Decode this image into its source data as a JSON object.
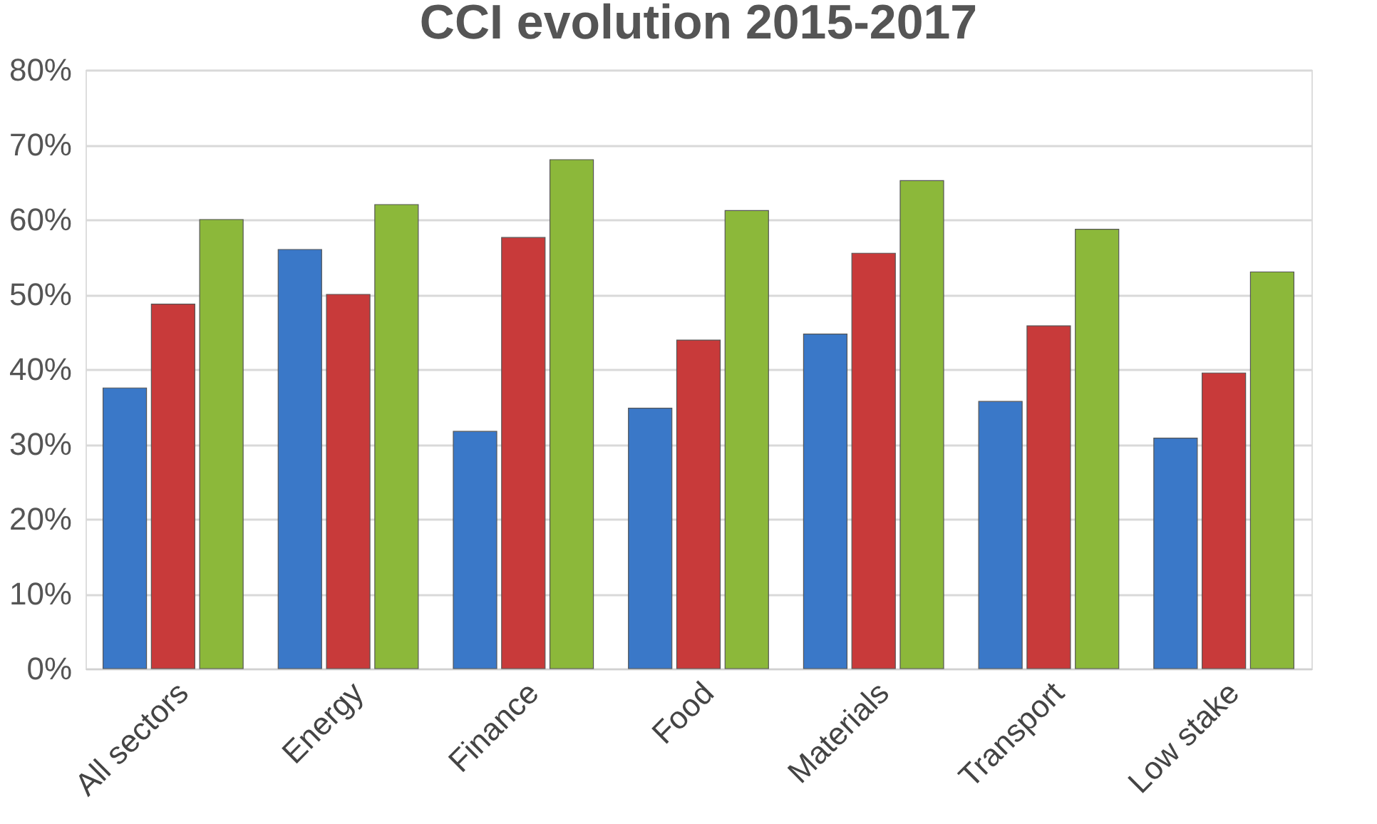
{
  "chart_data": {
    "type": "bar",
    "title": "CCI evolution  2015-2017",
    "categories": [
      "All sectors",
      "Energy",
      "Finance",
      "Food",
      "Materials",
      "Transport",
      "Low stake"
    ],
    "series": [
      {
        "color": "#3a78c8",
        "values": [
          37.5,
          56,
          31.7,
          34.8,
          44.7,
          35.7,
          30.8
        ]
      },
      {
        "color": "#c83a3a",
        "values": [
          48.7,
          50,
          57.6,
          43.9,
          55.5,
          45.8,
          39.5
        ]
      },
      {
        "color": "#8cb83a",
        "values": [
          60,
          62,
          68,
          61.2,
          65.2,
          58.7,
          53
        ]
      }
    ],
    "ylim": [
      0,
      80
    ],
    "yticks": [
      {
        "value": 0,
        "label": "0%"
      },
      {
        "value": 10,
        "label": "10%"
      },
      {
        "value": 20,
        "label": "20%"
      },
      {
        "value": 30,
        "label": "30%"
      },
      {
        "value": 40,
        "label": "40%"
      },
      {
        "value": 50,
        "label": "50%"
      },
      {
        "value": 60,
        "label": "60%"
      },
      {
        "value": 70,
        "label": "70%"
      },
      {
        "value": 80,
        "label": "80%"
      }
    ],
    "grid": "y",
    "legend": false
  }
}
